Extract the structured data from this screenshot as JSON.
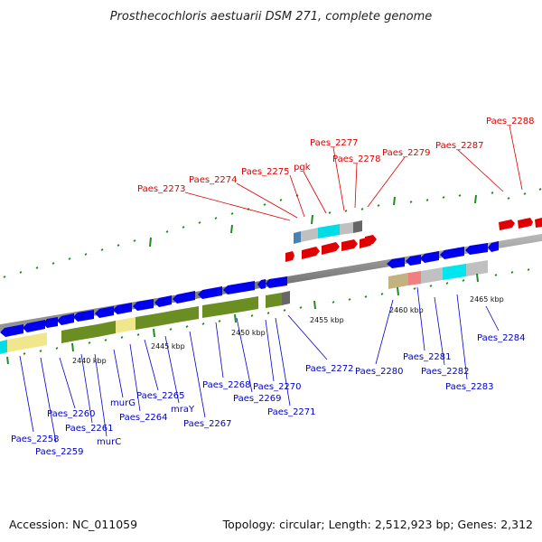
{
  "title": "Prosthecochloris aestuarii DSM 271, complete genome",
  "footer": {
    "accession": "Accession: NC_011059",
    "summary": "Topology: circular; Length: 2,512,923 bp; Genes: 2,312"
  },
  "scale_labels": [
    "2440 kbp",
    "2445 kbp",
    "2450 kbp",
    "2455 kbp",
    "2460 kbp",
    "2465 kbp"
  ],
  "gene_labels_upper": [
    "Paes_2273",
    "Paes_2274",
    "Paes_2275",
    "pgk",
    "Paes_2277",
    "Paes_2278",
    "Paes_2279",
    "Paes_2287",
    "Paes_2288"
  ],
  "gene_labels_lower": [
    "Paes_2258",
    "Paes_2259",
    "Paes_2260",
    "Paes_2261",
    "murC",
    "murG",
    "Paes_2264",
    "Paes_2265",
    "mraY",
    "Paes_2267",
    "Paes_2268",
    "Paes_2269",
    "Paes_2270",
    "Paes_2271",
    "Paes_2272",
    "Paes_2280",
    "Paes_2281",
    "Paes_2282",
    "Paes_2283",
    "Paes_2284"
  ],
  "colors": {
    "forward_strand": "#dd0000",
    "reverse_strand": "#0000ee",
    "backbone": "#888888",
    "scale_ticks": "#228b22",
    "cds_olive": "#6b8e23",
    "cds_khaki": "#f0e68c",
    "cds_cyan": "#00e5ee",
    "cds_gray": "#c0c0c0"
  }
}
